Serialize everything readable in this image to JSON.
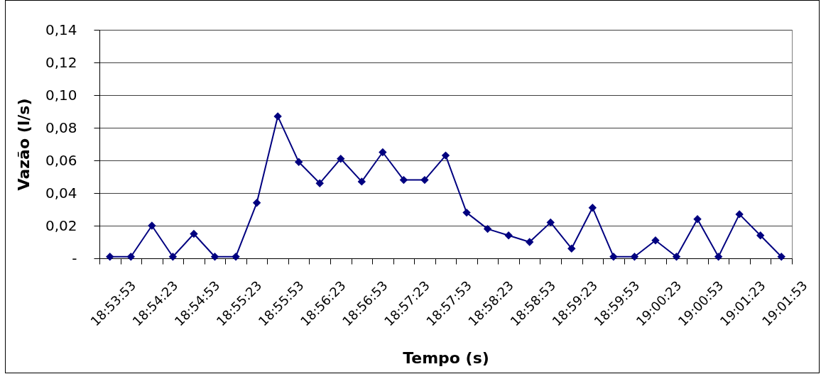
{
  "chart_data": {
    "type": "line",
    "xlabel": "Tempo (s)",
    "ylabel": "Vazão (l/s)",
    "categories": [
      "18:53:53",
      null,
      "18:54:23",
      null,
      "18:54:53",
      null,
      "18:55:23",
      null,
      "18:55:53",
      null,
      "18:56:23",
      null,
      "18:56:53",
      null,
      "18:57:23",
      null,
      "18:57:53",
      null,
      "18:58:23",
      null,
      "18:58:53",
      null,
      "18:59:23",
      null,
      "18:59:53",
      null,
      "19:00:23",
      null,
      "19:00:53",
      null,
      "19:01:23",
      null,
      "19:01:53"
    ],
    "series": [
      {
        "color": "#000080",
        "values": [
          0.001,
          0.001,
          0.02,
          0.001,
          0.015,
          0.001,
          0.001,
          0.034,
          0.087,
          0.059,
          0.046,
          0.061,
          0.047,
          0.065,
          0.048,
          0.048,
          0.063,
          0.028,
          0.018,
          0.014,
          0.01,
          0.022,
          0.006,
          0.031,
          0.001,
          0.001,
          0.011,
          0.001,
          0.024,
          0.001,
          0.027,
          0.014,
          0.001
        ]
      }
    ],
    "ylim": [
      0,
      0.14
    ],
    "yticks": [
      {
        "value": 0,
        "label": "-"
      },
      {
        "value": 0.02,
        "label": "0,02"
      },
      {
        "value": 0.04,
        "label": "0,04"
      },
      {
        "value": 0.06,
        "label": "0,06"
      },
      {
        "value": 0.08,
        "label": "0,08"
      },
      {
        "value": 0.1,
        "label": "0,10"
      },
      {
        "value": 0.12,
        "label": "0,12"
      },
      {
        "value": 0.14,
        "label": "0,14"
      }
    ],
    "grid": "y",
    "marker": "diamond",
    "line_style": "solid"
  }
}
